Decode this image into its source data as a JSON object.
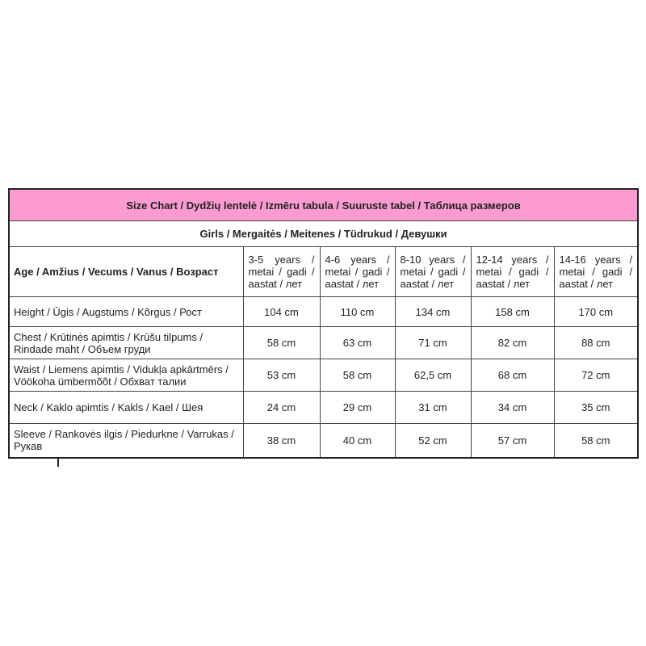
{
  "title": "Size Chart  /  Dydžių lentelė  /  Izmēru tabula  /  Suuruste tabel  / Таблица размеров",
  "subtitle": "Girls / Mergaitės / Meitenes / Tüdrukud / Девушки",
  "header": {
    "label": "Age / Amžius / Vecums / Vanus / Возраст",
    "sizes": [
      "3-5 years / metai / gadi / aastat / лет",
      "4-6 years / metai / gadi / aastat / лет",
      "8-10 years / metai / gadi / aastat / лет",
      "12-14 years / metai / gadi / aastat / лет",
      "14-16 years / metai / gadi / aastat / лет"
    ]
  },
  "header_fill_color": "#fc9bd2",
  "rows": [
    {
      "label": "Height / Ūgis / Augstums / Kõrgus / Рост",
      "values": [
        "104 cm",
        "110 cm",
        "134 cm",
        "158 cm",
        "170 cm"
      ]
    },
    {
      "label": "Chest / Krūtinės apimtis / Krūšu tilpums / Rindade maht / Объем груди",
      "values": [
        "58 cm",
        "63 cm",
        "71 cm",
        "82 cm",
        "88 cm"
      ]
    },
    {
      "label": "Waist / Liemens apimtis / Vidukļa apkārtmērs / Vöökoha ümbermõõt / Обхват талии",
      "values": [
        "53 cm",
        "58 cm",
        "62,5 cm",
        "68 cm",
        "72 cm"
      ]
    },
    {
      "label": "Neck / Kaklo apimtis / Kakls / Kael / Шея",
      "values": [
        "24 cm",
        "29 cm",
        "31 cm",
        "34 cm",
        "35 cm"
      ]
    },
    {
      "label": "Sleeve / Rankovės ilgis / Piedurkne / Varrukas / Рукав",
      "values": [
        "38 cm",
        "40 cm",
        "52 cm",
        "57 cm",
        "58 cm"
      ]
    }
  ]
}
